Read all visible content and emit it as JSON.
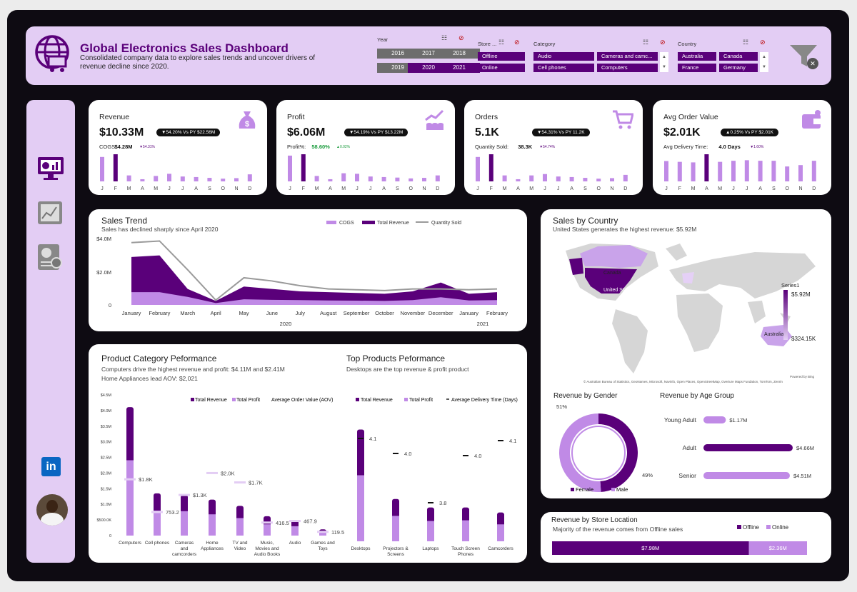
{
  "header": {
    "title": "Global Electronics Sales Dashboard",
    "subtitle": "Consolidated company data to explore sales trends and uncover drivers of revenue decline since 2020.",
    "year_label": "Year",
    "years": [
      "2016",
      "2017",
      "2018",
      "2019",
      "2020",
      "2021"
    ],
    "store_label": "Store ...",
    "stores": [
      "Offline",
      "Online"
    ],
    "category_label": "Category",
    "categories": [
      "Audio",
      "Cameras and camc...",
      "Cell phones",
      "Computers"
    ],
    "country_label": "Country",
    "countries": [
      "Australia",
      "Canada",
      "France",
      "Germany"
    ]
  },
  "colors": {
    "primary": "#5a007a",
    "light": "#c08ae6",
    "pale": "#e3cdf4",
    "frame": "#0e0b12"
  },
  "kpis": [
    {
      "title": "Revenue",
      "value": "$10.33M",
      "badge": "▼54.20% Vs PY $22.56M",
      "sub_label": "COGS:",
      "sub_value": "$4.28M",
      "sub_delta": "▼54.31%",
      "icon": "money-bag-icon",
      "bars": [
        0.9,
        1.0,
        0.22,
        0.08,
        0.2,
        0.28,
        0.18,
        0.16,
        0.13,
        0.1,
        0.12,
        0.26
      ],
      "highlight": 1
    },
    {
      "title": "Profit",
      "value": "$6.06M",
      "badge": "▼54.19% Vs PY $13.22M",
      "sub_label": "Profit%:",
      "sub_value": "58.60%",
      "sub_delta": "▲0.02%",
      "icon": "growth-coins-icon",
      "bars": [
        0.95,
        1.0,
        0.2,
        0.08,
        0.3,
        0.28,
        0.18,
        0.16,
        0.14,
        0.11,
        0.13,
        0.22
      ],
      "highlight": 1
    },
    {
      "title": "Orders",
      "value": "5.1K",
      "badge": "▼54.31% Vs PY 11.2K",
      "sub_label": "Quantity Sold:",
      "sub_value": "38.3K",
      "sub_delta": "▼54.74%",
      "icon": "shopping-cart-icon",
      "bars": [
        0.9,
        1.0,
        0.22,
        0.08,
        0.22,
        0.27,
        0.18,
        0.16,
        0.13,
        0.1,
        0.12,
        0.24
      ],
      "highlight": 1
    },
    {
      "title": "Avg Order Value",
      "value": "$2.01K",
      "badge": "▲0.25% Vs PY $2.01K",
      "sub_label": "Avg Delivery Time:",
      "sub_value": "4.0 Days",
      "sub_delta": "▼1.60%",
      "icon": "wallet-icon",
      "bars": [
        0.75,
        0.72,
        0.7,
        1.0,
        0.72,
        0.76,
        0.78,
        0.76,
        0.76,
        0.55,
        0.6,
        0.76
      ],
      "highlight": 3
    }
  ],
  "months_short": [
    "J",
    "F",
    "M",
    "A",
    "M",
    "J",
    "J",
    "A",
    "S",
    "O",
    "N",
    "D"
  ],
  "sales_trend": {
    "title": "Sales Trend",
    "subtitle": "Sales has declined sharply since April 2020",
    "legend": [
      "COGS",
      "Total Revenue",
      "Quantity Sold"
    ],
    "y_ticks": [
      "$4.0M",
      "$2.0M",
      "0"
    ],
    "year_a": "2020",
    "year_b": "2021"
  },
  "chart_data": [
    {
      "type": "area",
      "title": "Sales Trend",
      "x": [
        "January",
        "February",
        "March",
        "April",
        "May",
        "June",
        "July",
        "August",
        "September",
        "October",
        "November",
        "December",
        "January",
        "February"
      ],
      "series": [
        {
          "name": "Total Revenue",
          "values": [
            3.0,
            3.1,
            1.0,
            0.25,
            1.15,
            1.0,
            0.85,
            0.8,
            0.75,
            0.7,
            0.85,
            1.4,
            0.7,
            0.8
          ]
        },
        {
          "name": "COGS",
          "values": [
            0.8,
            0.8,
            0.5,
            0.12,
            0.35,
            0.32,
            0.3,
            0.28,
            0.27,
            0.25,
            0.3,
            0.48,
            0.28,
            0.3
          ]
        },
        {
          "name": "Quantity Sold",
          "values": [
            3.9,
            4.0,
            2.2,
            0.3,
            1.7,
            1.5,
            1.2,
            1.0,
            0.95,
            0.9,
            1.0,
            1.0,
            0.95,
            1.0
          ]
        }
      ],
      "ylim": [
        0,
        4.2
      ],
      "ylabel": ""
    },
    {
      "type": "bar",
      "title": "Product Category Peformance",
      "categories": [
        "Computers",
        "Cell phones",
        "Cameras and camcorders",
        "Home Appliances",
        "TV and Video",
        "Music, Movies and Audio Books",
        "Audio",
        "Games and Toys"
      ],
      "series": [
        {
          "name": "Total Revenue",
          "values": [
            4.11,
            1.35,
            1.3,
            1.15,
            0.95,
            0.62,
            0.5,
            0.2
          ]
        },
        {
          "name": "Total Profit",
          "values": [
            2.41,
            0.8,
            0.78,
            0.68,
            0.56,
            0.36,
            0.3,
            0.12
          ]
        }
      ],
      "aov": {
        "name": "Average Order Value (AOV)",
        "values": [
          1.8,
          0.7532,
          1.3,
          2.0,
          1.7,
          0.4165,
          0.4679,
          0.1195
        ],
        "labels": [
          "$1.8K",
          "753.2",
          "$1.3K",
          "$2.0K",
          "$1.7K",
          "416.5",
          "467.9",
          "119.5"
        ]
      },
      "ylim": [
        0,
        4.5
      ],
      "y_ticks": [
        "$4.5M",
        "$4.0M",
        "$3.5M",
        "$3.0M",
        "$2.5M",
        "$2.0M",
        "$1.5M",
        "$1.0M",
        "$500.0K",
        "0"
      ]
    },
    {
      "type": "bar",
      "title": "Top Products Peformance",
      "categories": [
        "Desktops",
        "Projectors & Screens",
        "Laptops",
        "Touch Screen Phones",
        "Camcorders"
      ],
      "series": [
        {
          "name": "Total Revenue",
          "values": [
            3.3,
            1.25,
            1.0,
            1.0,
            0.85
          ]
        },
        {
          "name": "Total Profit",
          "values": [
            1.95,
            0.75,
            0.6,
            0.62,
            0.5
          ]
        }
      ],
      "delivery": {
        "name": "Average Delivery Time (Days)",
        "values": [
          4.1,
          4.0,
          3.8,
          4.0,
          4.1
        ],
        "labels": [
          "4.1",
          "4.0",
          "3.8",
          "4.0",
          "4.1"
        ]
      }
    },
    {
      "type": "pie",
      "title": "Revenue by Gender",
      "labels": [
        "Female",
        "Male"
      ],
      "values": [
        49,
        51
      ],
      "value_labels": [
        "49%",
        "51%"
      ]
    },
    {
      "type": "bar",
      "title": "Revenue by Age Group",
      "categories": [
        "Young Adult",
        "Adult",
        "Senior"
      ],
      "values": [
        1.17,
        4.66,
        4.51
      ],
      "value_labels": [
        "$1.17M",
        "$4.66M",
        "$4.51M"
      ]
    },
    {
      "type": "bar",
      "title": "Revenue by Store Location",
      "categories": [
        "Offline",
        "Online"
      ],
      "values": [
        7.98,
        2.36
      ],
      "value_labels": [
        "$7.98M",
        "$2.36M"
      ]
    }
  ],
  "product_cat": {
    "title": "Product Category Peformance",
    "sub1": "Computers drive the highest revenue and profit: $4.11M  and $2.41M",
    "sub2": "Home Appliances lead AOV: $2,021",
    "legend": [
      "Total Revenue",
      "Total Profit",
      "Average Order Value (AOV)"
    ],
    "labels": [
      [
        "Computers"
      ],
      [
        "Cell phones"
      ],
      [
        "Cameras",
        "and",
        "camcorders"
      ],
      [
        "Home",
        "Appliances"
      ],
      [
        "TV and",
        "Video"
      ],
      [
        "Music,",
        "Movies and",
        "Audio Books"
      ],
      [
        "Audio"
      ],
      [
        "Games and",
        "Toys"
      ]
    ]
  },
  "top_products": {
    "title": "Top Products Peformance",
    "sub": "Desktops are the top revenue & profit product",
    "legend": [
      "Total Revenue",
      "Total Profit",
      "Average Delivery Time (Days)"
    ],
    "labels": [
      [
        "Desktops"
      ],
      [
        "Projectors &",
        "Screens"
      ],
      [
        "Laptops"
      ],
      [
        "Touch Screen",
        "Phones"
      ],
      [
        "Camcorders"
      ]
    ]
  },
  "country": {
    "title": "Sales by Country",
    "sub": "United States generates the highest revenue: $5.92M",
    "labels": [
      "Canada",
      "United States",
      "Australia"
    ],
    "legend_title": "Series1",
    "legend_max": "$5.92M",
    "legend_min": "$324.15K",
    "credit": "© Australian Bureau of Statistics, GeoNames, Microsoft, Navinfo, Open Places, OpenStreetMap, Overture Maps Fundation, TomTom, Zenrin",
    "powered": "Powered by Bing"
  },
  "gender": {
    "title": "Revenue by Gender",
    "legend": [
      "Female",
      "Male"
    ]
  },
  "age": {
    "title": "Revenue by Age Group"
  },
  "store_loc": {
    "title": "Revenue by Store Location",
    "sub": "Majority of the revenue comes from Offline sales",
    "legend": [
      "Offline",
      "Online"
    ]
  }
}
